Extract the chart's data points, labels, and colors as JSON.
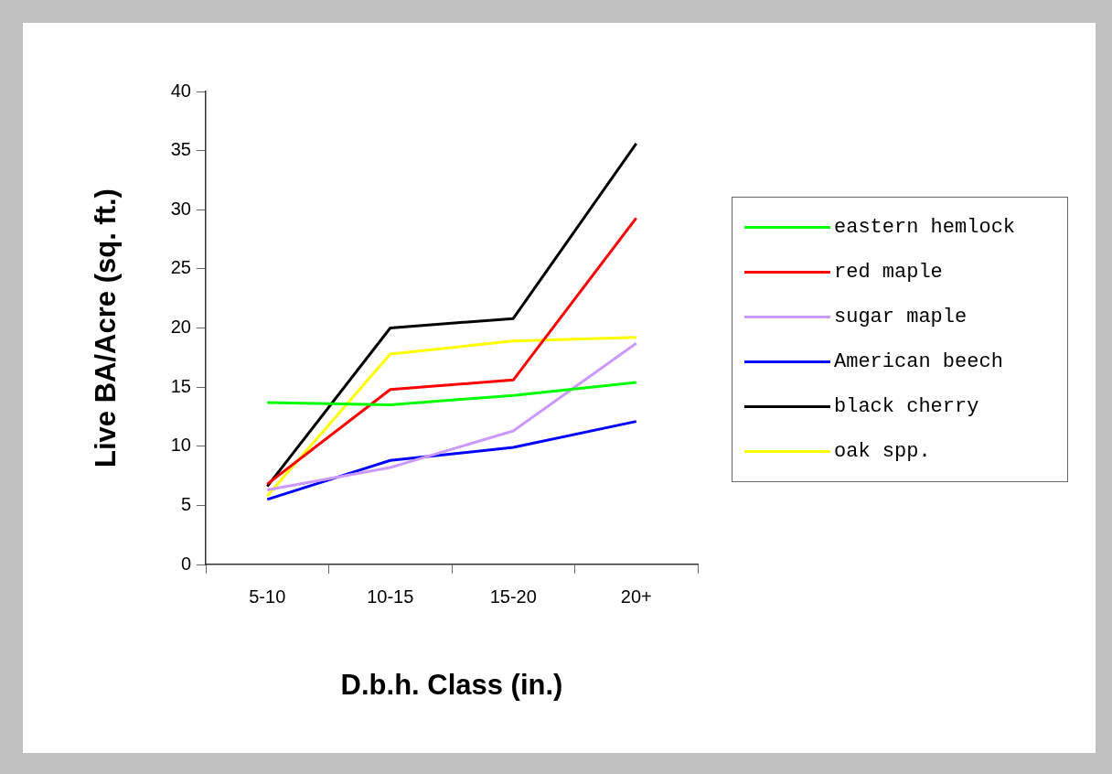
{
  "chart_data": {
    "type": "line",
    "xlabel": "D.b.h. Class (in.)",
    "ylabel": "Live BA/Acre (sq. ft.)",
    "categories": [
      "5-10",
      "10-15",
      "15-20",
      "20+"
    ],
    "series": [
      {
        "name": "eastern hemlock",
        "color": "#00ff00",
        "values": [
          13.7,
          13.5,
          14.3,
          15.4
        ]
      },
      {
        "name": "red maple",
        "color": "#ff0000",
        "values": [
          6.8,
          14.8,
          15.6,
          29.3
        ]
      },
      {
        "name": "sugar maple",
        "color": "#cc99ff",
        "values": [
          6.3,
          8.2,
          11.3,
          18.7
        ]
      },
      {
        "name": "American beech",
        "color": "#0000ff",
        "values": [
          5.5,
          8.8,
          9.9,
          12.1
        ]
      },
      {
        "name": "black cherry",
        "color": "#000000",
        "values": [
          6.6,
          20.0,
          20.8,
          35.6
        ]
      },
      {
        "name": "oak spp.",
        "color": "#ffff00",
        "values": [
          5.8,
          17.8,
          18.9,
          19.2
        ]
      }
    ],
    "ylim": [
      0,
      40
    ],
    "yticks": [
      0,
      5,
      10,
      15,
      20,
      25,
      30,
      35,
      40
    ],
    "grid": false,
    "legend": "right",
    "marker": "none",
    "line_style": "solid"
  }
}
